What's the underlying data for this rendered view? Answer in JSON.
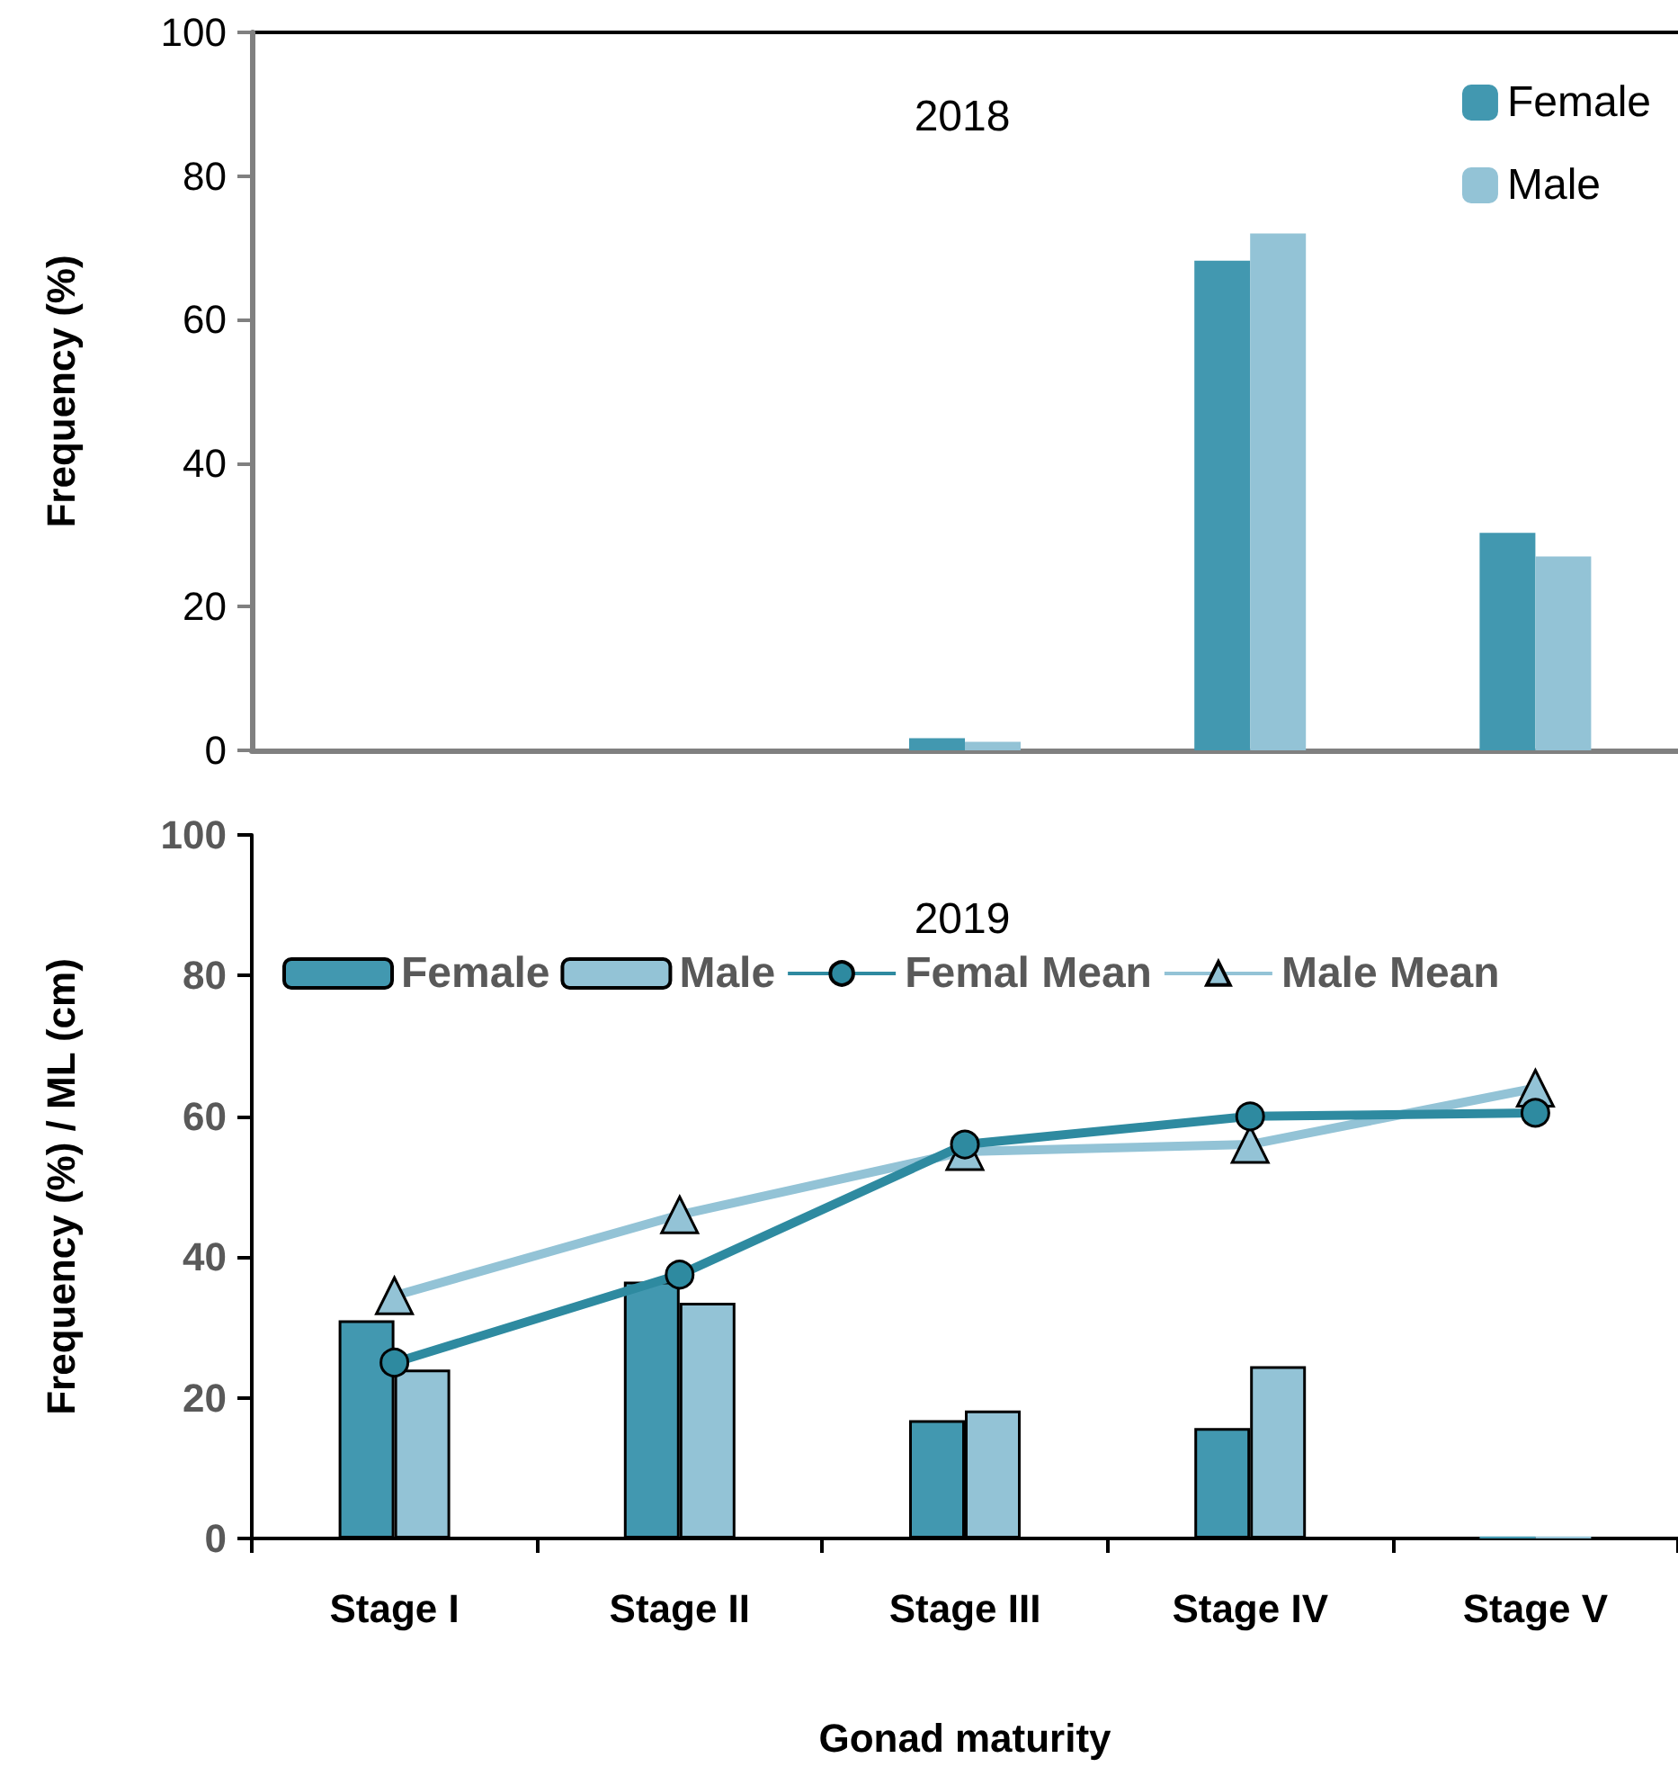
{
  "chart_data": [
    {
      "type": "bar",
      "title": "2018",
      "ylabel": "Frequency (%)",
      "categories": [
        null,
        null,
        null,
        null,
        null
      ],
      "tick_labels": "y",
      "ylim": [
        0,
        100
      ],
      "yticks": [
        0,
        20,
        40,
        60,
        80,
        100
      ],
      "legend": "top right",
      "grid": false,
      "series": [
        {
          "name": "Female",
          "color": "#4298b0",
          "values": [
            0,
            0,
            1.7,
            68.2,
            30.3
          ]
        },
        {
          "name": "Male",
          "color": "#93c3d6",
          "values": [
            0,
            0,
            1.2,
            72,
            27
          ]
        }
      ]
    },
    {
      "type": "bar",
      "title": "2019",
      "xlabel": "Gonad maturity",
      "ylabel": "Frequency (%) / ML (cm)",
      "categories": [
        "Stage I",
        "Stage II",
        "Stage III",
        "Stage IV",
        "Stage V"
      ],
      "ylim": [
        0,
        100
      ],
      "yticks": [
        0,
        20,
        40,
        60,
        80,
        100
      ],
      "legend": "top",
      "grid": false,
      "series": [
        {
          "name": "Female",
          "color": "#4298b0",
          "values": [
            31,
            36.5,
            16.8,
            15.7,
            0.3
          ]
        },
        {
          "name": "Male",
          "color": "#93c3d6",
          "values": [
            24,
            33.5,
            18.2,
            24.5,
            0.3
          ]
        },
        {
          "name": "Femal Mean",
          "type": "line",
          "marker": "circle",
          "color": "#2e8aa0",
          "values": [
            25,
            37.5,
            56,
            60,
            60.5
          ]
        },
        {
          "name": "Male Mean",
          "type": "line",
          "marker": "triangle",
          "color": "#93c3d6",
          "values": [
            34.5,
            46,
            55,
            56,
            64
          ]
        }
      ]
    }
  ]
}
